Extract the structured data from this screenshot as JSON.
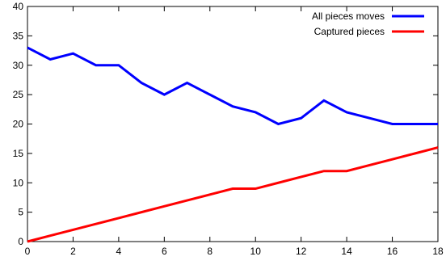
{
  "chart_data": {
    "type": "line",
    "x": [
      0,
      1,
      2,
      3,
      4,
      5,
      6,
      7,
      8,
      9,
      10,
      11,
      12,
      13,
      14,
      15,
      16,
      17,
      18
    ],
    "series": [
      {
        "name": "All pieces moves",
        "color": "#0000ff",
        "values": [
          33,
          31,
          32,
          30,
          30,
          27,
          25,
          27,
          25,
          23,
          22,
          20,
          21,
          24,
          22,
          21,
          20,
          20,
          20
        ]
      },
      {
        "name": "Captured pieces",
        "color": "#ff0000",
        "values": [
          0,
          1,
          2,
          3,
          4,
          5,
          6,
          7,
          8,
          9,
          9,
          10,
          11,
          12,
          12,
          13,
          14,
          15,
          16
        ]
      }
    ],
    "xlim": [
      0,
      18
    ],
    "ylim": [
      0,
      40
    ],
    "x_ticks": [
      0,
      2,
      4,
      6,
      8,
      10,
      12,
      14,
      16,
      18
    ],
    "y_ticks": [
      0,
      5,
      10,
      15,
      20,
      25,
      30,
      35,
      40
    ],
    "grid": false,
    "legend_position": "top-right",
    "title": "",
    "xlabel": "",
    "ylabel": ""
  }
}
